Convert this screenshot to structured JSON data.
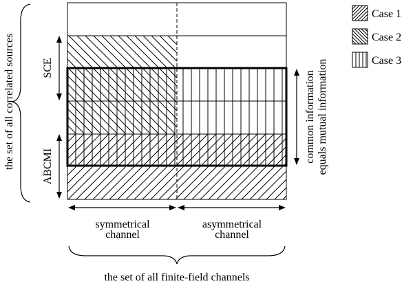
{
  "labels": {
    "left_brace": "the set of all correlated sources",
    "sce": "SCE",
    "abcmi": "ABCMI",
    "right_side_line1": "common information",
    "right_side_line2": "equals mutual information",
    "symmetrical_line1": "symmetrical",
    "symmetrical_line2": "channel",
    "asymmetrical_line1": "asymmetrical",
    "asymmetrical_line2": "channel",
    "bottom_brace": "the set of all finite-field channels"
  },
  "legend": [
    {
      "label": "Case 1",
      "pattern": "diag-up"
    },
    {
      "label": "Case 2",
      "pattern": "diag-down"
    },
    {
      "label": "Case 3",
      "pattern": "vertical"
    }
  ],
  "colors": {
    "ink": "#000000",
    "background": "#ffffff"
  }
}
